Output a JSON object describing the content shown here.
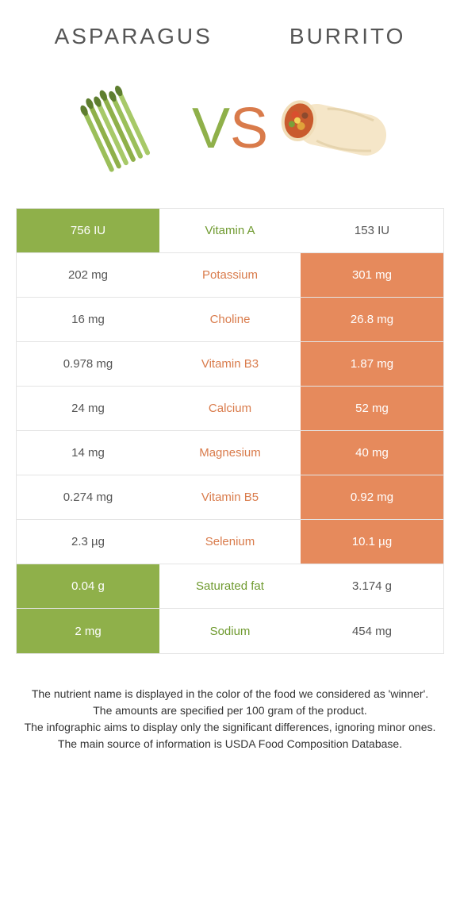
{
  "colors": {
    "left_bg": "#8fb04a",
    "right_bg": "#e68a5c",
    "left_text_on_bg": "#ffffff",
    "right_text_on_bg": "#ffffff",
    "plain_text": "#555555",
    "mid_left_winner": "#6f9a2f",
    "mid_right_winner": "#d97b4b"
  },
  "header": {
    "left": "Asparagus",
    "right": "Burrito"
  },
  "vs": {
    "v": "V",
    "s": "S"
  },
  "rows": [
    {
      "left": "756 IU",
      "name": "Vitamin A",
      "right": "153 IU",
      "winner": "left"
    },
    {
      "left": "202 mg",
      "name": "Potassium",
      "right": "301 mg",
      "winner": "right"
    },
    {
      "left": "16 mg",
      "name": "Choline",
      "right": "26.8 mg",
      "winner": "right"
    },
    {
      "left": "0.978 mg",
      "name": "Vitamin B3",
      "right": "1.87 mg",
      "winner": "right"
    },
    {
      "left": "24 mg",
      "name": "Calcium",
      "right": "52 mg",
      "winner": "right"
    },
    {
      "left": "14 mg",
      "name": "Magnesium",
      "right": "40 mg",
      "winner": "right"
    },
    {
      "left": "0.274 mg",
      "name": "Vitamin B5",
      "right": "0.92 mg",
      "winner": "right"
    },
    {
      "left": "2.3 µg",
      "name": "Selenium",
      "right": "10.1 µg",
      "winner": "right"
    },
    {
      "left": "0.04 g",
      "name": "Saturated fat",
      "right": "3.174 g",
      "winner": "left"
    },
    {
      "left": "2 mg",
      "name": "Sodium",
      "right": "454 mg",
      "winner": "left"
    }
  ],
  "footer": {
    "line1": "The nutrient name is displayed in the color of the food we considered as 'winner'.",
    "line2": "The amounts are specified per 100 gram of the product.",
    "line3": "The infographic aims to display only the significant differences, ignoring minor ones.",
    "line4": "The main source of information is USDA Food Composition Database."
  }
}
